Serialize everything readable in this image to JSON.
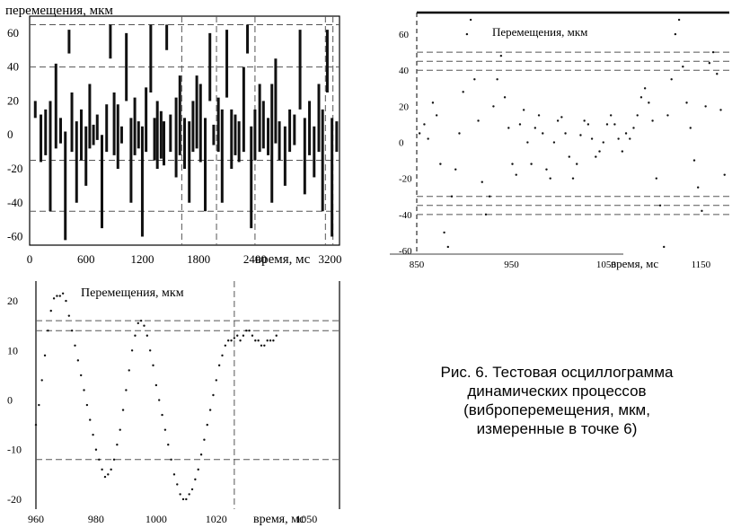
{
  "caption": [
    "Рис. 6. Тестовая осциллограмма",
    "динамических процессов",
    "(виброперемещения, мкм,",
    "измеренные в точке 6)"
  ],
  "chart_data": [
    {
      "type": "bar",
      "title": "",
      "ylabel": "перемещения, мкм",
      "xlabel": "время, мс",
      "xlim": [
        0,
        3300
      ],
      "ylim": [
        -65,
        70
      ],
      "xticks": [
        "0",
        "600",
        "1200",
        "1800",
        "2400",
        "3200"
      ],
      "xtick_values": [
        0,
        600,
        1200,
        1800,
        2400,
        3200
      ],
      "yticks": [
        "60",
        "40",
        "20",
        "0",
        "-20",
        "-40",
        "-60"
      ],
      "ytick_values": [
        60,
        40,
        20,
        0,
        -20,
        -40,
        -60
      ],
      "hlines": [
        65,
        40,
        -15,
        -45
      ],
      "vlines": [
        1620,
        1990,
        2400,
        3150,
        3230
      ],
      "series": [
        {
          "values": [
            [
              60,
              10,
              20
            ],
            [
              120,
              -16,
              12
            ],
            [
              170,
              -12,
              15
            ],
            [
              220,
              -45,
              20
            ],
            [
              280,
              -8,
              42
            ],
            [
              330,
              -5,
              10
            ],
            [
              380,
              -62,
              2
            ],
            [
              420,
              48,
              62
            ],
            [
              450,
              -10,
              25
            ],
            [
              500,
              -40,
              8
            ],
            [
              550,
              -15,
              15
            ],
            [
              600,
              -30,
              5
            ],
            [
              640,
              -8,
              30
            ],
            [
              680,
              -6,
              6
            ],
            [
              720,
              -3,
              12
            ],
            [
              770,
              -55,
              0
            ],
            [
              820,
              -10,
              18
            ],
            [
              860,
              45,
              65
            ],
            [
              900,
              -12,
              25
            ],
            [
              940,
              -20,
              18
            ],
            [
              980,
              -5,
              5
            ],
            [
              1030,
              20,
              60
            ],
            [
              1080,
              -40,
              10
            ],
            [
              1120,
              -12,
              22
            ],
            [
              1160,
              -8,
              8
            ],
            [
              1200,
              -60,
              5
            ],
            [
              1240,
              -10,
              28
            ],
            [
              1290,
              25,
              65
            ],
            [
              1330,
              -15,
              10
            ],
            [
              1360,
              -20,
              20
            ],
            [
              1400,
              -14,
              14
            ],
            [
              1430,
              -18,
              8
            ],
            [
              1460,
              50,
              65
            ],
            [
              1500,
              -10,
              12
            ],
            [
              1560,
              -25,
              22
            ],
            [
              1600,
              -12,
              35
            ],
            [
              1650,
              -20,
              10
            ],
            [
              1700,
              -40,
              8
            ],
            [
              1740,
              -10,
              20
            ],
            [
              1780,
              -8,
              35
            ],
            [
              1820,
              -16,
              30
            ],
            [
              1870,
              -45,
              10
            ],
            [
              1920,
              20,
              60
            ],
            [
              1960,
              -6,
              6
            ],
            [
              2010,
              -10,
              22
            ],
            [
              2050,
              -40,
              15
            ],
            [
              2100,
              22,
              62
            ],
            [
              2150,
              -20,
              15
            ],
            [
              2190,
              -12,
              12
            ],
            [
              2230,
              -16,
              8
            ],
            [
              2280,
              -10,
              40
            ],
            [
              2320,
              48,
              65
            ],
            [
              2360,
              -55,
              5
            ],
            [
              2400,
              -15,
              15
            ],
            [
              2450,
              -10,
              30
            ],
            [
              2490,
              -8,
              20
            ],
            [
              2540,
              -12,
              10
            ],
            [
              2580,
              -40,
              30
            ],
            [
              2620,
              -5,
              45
            ],
            [
              2660,
              -15,
              8
            ],
            [
              2720,
              -30,
              5
            ],
            [
              2770,
              -10,
              15
            ],
            [
              2820,
              -6,
              12
            ],
            [
              2880,
              15,
              62
            ],
            [
              2930,
              -35,
              10
            ],
            [
              2980,
              -12,
              20
            ],
            [
              3030,
              -25,
              5
            ],
            [
              3080,
              -10,
              30
            ],
            [
              3120,
              -45,
              15
            ],
            [
              3170,
              25,
              62
            ],
            [
              3220,
              -60,
              10
            ],
            [
              3270,
              -10,
              8
            ]
          ]
        }
      ]
    },
    {
      "type": "scatter",
      "title": "",
      "ylabel": "Перемещения, мкм",
      "xlabel": "время, мс",
      "xlim": [
        850,
        1180
      ],
      "ylim": [
        -62,
        72
      ],
      "xticks": [
        "850",
        "950",
        "1050",
        "1150"
      ],
      "xtick_values": [
        850,
        950,
        1050,
        1150
      ],
      "yticks": [
        "60",
        "40",
        "20",
        "0",
        "-20",
        "-40",
        "-60"
      ],
      "ytick_values": [
        60,
        40,
        20,
        0,
        -20,
        -40,
        -60
      ],
      "hlines": [
        50,
        45,
        40,
        -30,
        -35,
        -40
      ],
      "series": [
        {
          "x": [
            853,
            858,
            862,
            867,
            871,
            875,
            879,
            883,
            887,
            891,
            895,
            899,
            903,
            907,
            911,
            915,
            919,
            923,
            927,
            931,
            935,
            939,
            943,
            947,
            951,
            955,
            959,
            963,
            967,
            971,
            975,
            979,
            983,
            987,
            991,
            995,
            999,
            1003,
            1007,
            1011,
            1015,
            1019,
            1023,
            1027,
            1031,
            1035,
            1039,
            1043,
            1047,
            1051,
            1055,
            1059,
            1063,
            1067,
            1071,
            1075,
            1079,
            1083,
            1087,
            1091,
            1095,
            1099,
            1103,
            1107,
            1111,
            1115,
            1119,
            1123,
            1127,
            1131,
            1135,
            1139,
            1143,
            1147,
            1151,
            1155,
            1159,
            1163,
            1167,
            1171,
            1175
          ],
          "y": [
            5,
            10,
            2,
            22,
            15,
            -12,
            -50,
            -58,
            -30,
            -15,
            5,
            28,
            60,
            68,
            35,
            12,
            -22,
            -40,
            -30,
            20,
            35,
            48,
            25,
            8,
            -12,
            -18,
            10,
            18,
            0,
            -12,
            8,
            15,
            5,
            -15,
            -20,
            0,
            12,
            14,
            5,
            -8,
            -20,
            -12,
            4,
            12,
            10,
            2,
            -8,
            -5,
            0,
            10,
            15,
            10,
            2,
            -5,
            5,
            2,
            8,
            15,
            25,
            30,
            22,
            12,
            -20,
            -35,
            -58,
            15,
            35,
            60,
            68,
            42,
            22,
            8,
            -10,
            -25,
            -38,
            20,
            44,
            50,
            38,
            18,
            -18
          ]
        }
      ]
    },
    {
      "type": "scatter",
      "title": "",
      "ylabel": "Перемещения, мкм",
      "xlabel": "время, мс",
      "xlim": [
        960,
        1061
      ],
      "ylim": [
        -22,
        24
      ],
      "xticks": [
        "960",
        "980",
        "1000",
        "1020",
        "1050"
      ],
      "xtick_values": [
        960,
        980,
        1000,
        1020,
        1050
      ],
      "yticks": [
        "20",
        "10",
        "0",
        "-10",
        "-20"
      ],
      "ytick_values": [
        20,
        10,
        0,
        -10,
        -20
      ],
      "hlines": [
        16,
        14,
        -12
      ],
      "vlines": [
        1026
      ],
      "series": [
        {
          "x": [
            960,
            961,
            962,
            963,
            964,
            965,
            966,
            967,
            968,
            969,
            970,
            971,
            972,
            973,
            974,
            975,
            976,
            977,
            978,
            979,
            980,
            981,
            982,
            983,
            984,
            985,
            986,
            987,
            988,
            989,
            990,
            991,
            992,
            993,
            994,
            995,
            996,
            997,
            998,
            999,
            1000,
            1001,
            1002,
            1003,
            1004,
            1005,
            1006,
            1007,
            1008,
            1009,
            1010,
            1011,
            1012,
            1013,
            1014,
            1015,
            1016,
            1017,
            1018,
            1019,
            1020,
            1021,
            1022,
            1023,
            1024,
            1025,
            1026,
            1027,
            1028,
            1029,
            1030,
            1031,
            1032,
            1033,
            1034,
            1035,
            1036,
            1037,
            1038,
            1039,
            1040
          ],
          "y": [
            -5,
            -1,
            4,
            9,
            14,
            18,
            20.5,
            21,
            21,
            21.5,
            20,
            17,
            14,
            11,
            8,
            5,
            2,
            -1,
            -4,
            -7,
            -10,
            -12,
            -14,
            -15.5,
            -15,
            -14,
            -12,
            -9,
            -6,
            -2,
            2,
            6,
            10,
            13,
            15.5,
            16,
            15,
            13,
            10,
            7,
            3,
            0,
            -3,
            -6,
            -9,
            -12,
            -15,
            -17,
            -19,
            -20,
            -20,
            -19,
            -18,
            -16,
            -14,
            -11,
            -8,
            -5,
            -2,
            1,
            4,
            7,
            9,
            11,
            12,
            12,
            12.5,
            13,
            12,
            13,
            14,
            14,
            13,
            12,
            12,
            11,
            11,
            12,
            12,
            12,
            13
          ]
        }
      ]
    }
  ]
}
